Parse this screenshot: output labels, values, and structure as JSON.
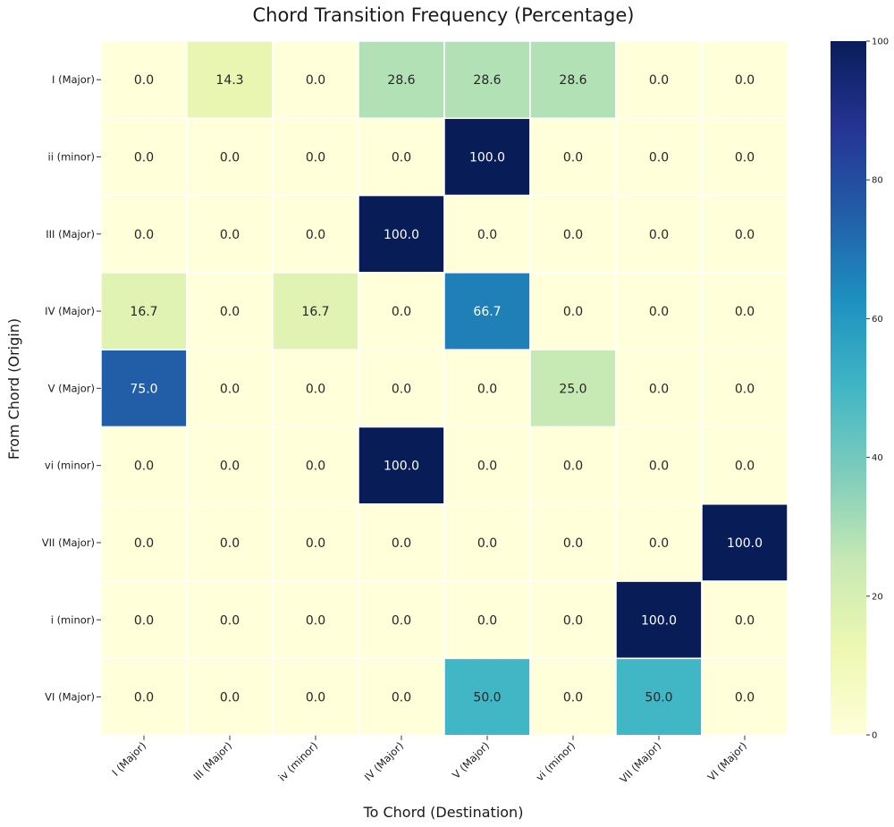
{
  "chart_data": {
    "type": "heatmap",
    "title": "Chord Transition Frequency (Percentage)",
    "xlabel": "To Chord (Destination)",
    "ylabel": "From Chord (Origin)",
    "x_categories": [
      "I (Major)",
      "III (Major)",
      "iv (minor)",
      "IV (Major)",
      "V (Major)",
      "vi (minor)",
      "VII (Major)",
      "VI (Major)"
    ],
    "y_categories": [
      "I (Major)",
      "ii (minor)",
      "III (Major)",
      "IV (Major)",
      "V (Major)",
      "vi (minor)",
      "VII (Major)",
      "i (minor)",
      "VI (Major)"
    ],
    "values": [
      [
        0.0,
        14.3,
        0.0,
        28.6,
        28.6,
        28.6,
        0.0,
        0.0
      ],
      [
        0.0,
        0.0,
        0.0,
        0.0,
        100.0,
        0.0,
        0.0,
        0.0
      ],
      [
        0.0,
        0.0,
        0.0,
        100.0,
        0.0,
        0.0,
        0.0,
        0.0
      ],
      [
        16.7,
        0.0,
        16.7,
        0.0,
        66.7,
        0.0,
        0.0,
        0.0
      ],
      [
        75.0,
        0.0,
        0.0,
        0.0,
        0.0,
        25.0,
        0.0,
        0.0
      ],
      [
        0.0,
        0.0,
        0.0,
        100.0,
        0.0,
        0.0,
        0.0,
        0.0
      ],
      [
        0.0,
        0.0,
        0.0,
        0.0,
        0.0,
        0.0,
        0.0,
        100.0
      ],
      [
        0.0,
        0.0,
        0.0,
        0.0,
        0.0,
        0.0,
        100.0,
        0.0
      ],
      [
        0.0,
        0.0,
        0.0,
        0.0,
        50.0,
        0.0,
        50.0,
        0.0
      ]
    ],
    "value_format": "0.0",
    "colorbar": {
      "range": [
        0,
        100
      ],
      "ticks": [
        "0",
        "20",
        "40",
        "60",
        "80",
        "100"
      ],
      "colormap": "YlGnBu"
    },
    "grid": false
  },
  "colors": {
    "cell_border": "#ffffff",
    "text_dark": "#262626",
    "text_light": "#ffffff"
  }
}
